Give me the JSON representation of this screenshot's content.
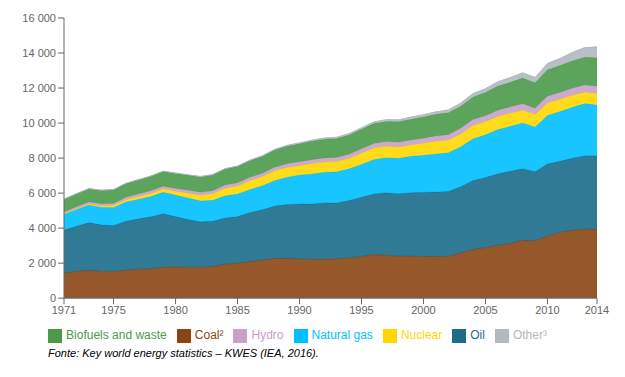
{
  "chart_data": {
    "type": "area",
    "stacked": true,
    "legend": "bottom",
    "grid": false,
    "annotations": [
      "Fonte: Key world energy statistics – KWES (IEA, 2016)."
    ],
    "x": [
      1971,
      1972,
      1973,
      1974,
      1975,
      1976,
      1977,
      1978,
      1979,
      1980,
      1981,
      1982,
      1983,
      1984,
      1985,
      1986,
      1987,
      1988,
      1989,
      1990,
      1991,
      1992,
      1993,
      1994,
      1995,
      1996,
      1997,
      1998,
      1999,
      2000,
      2001,
      2002,
      2003,
      2004,
      2005,
      2006,
      2007,
      2008,
      2009,
      2010,
      2011,
      2012,
      2013,
      2014
    ],
    "xlim": [
      1971,
      2014
    ],
    "xticks": [
      1971,
      1975,
      1980,
      1985,
      1990,
      1995,
      2000,
      2005,
      2010,
      2014
    ],
    "ylim": [
      0,
      16000
    ],
    "yticks": [
      0,
      {
        "value": 2000,
        "label": "2 000"
      },
      {
        "value": 4000,
        "label": "4 000"
      },
      {
        "value": 6000,
        "label": "6 000"
      },
      {
        "value": 8000,
        "label": "8 000"
      },
      {
        "value": 10000,
        "label": "10 000"
      },
      {
        "value": 12000,
        "label": "12 000"
      },
      {
        "value": 14000,
        "label": "14 000"
      },
      {
        "value": 16000,
        "label": "16 000"
      }
    ],
    "series": [
      {
        "name": "Coal²",
        "color": "#8B4513",
        "values": [
          1449,
          1524,
          1592,
          1543,
          1530,
          1601,
          1653,
          1683,
          1766,
          1792,
          1773,
          1773,
          1818,
          1942,
          2007,
          2093,
          2181,
          2266,
          2268,
          2244,
          2213,
          2218,
          2246,
          2296,
          2384,
          2490,
          2455,
          2394,
          2402,
          2386,
          2384,
          2393,
          2578,
          2777,
          2894,
          3026,
          3135,
          3302,
          3278,
          3555,
          3767,
          3876,
          3950,
          3916
        ]
      },
      {
        "name": "Oil",
        "color": "#1B6B8A",
        "values": [
          2450,
          2583,
          2723,
          2643,
          2623,
          2793,
          2876,
          2962,
          3060,
          2868,
          2726,
          2588,
          2571,
          2642,
          2651,
          2806,
          2862,
          2998,
          3088,
          3136,
          3167,
          3222,
          3196,
          3281,
          3380,
          3466,
          3567,
          3570,
          3621,
          3666,
          3677,
          3703,
          3785,
          3941,
          4001,
          4082,
          4111,
          4090,
          3947,
          4113,
          4050,
          4119,
          4185,
          4211
        ]
      },
      {
        "name": "Natural gas",
        "color": "#00BFFF",
        "values": [
          895,
          953,
          1010,
          1012,
          1032,
          1099,
          1117,
          1155,
          1220,
          1228,
          1223,
          1196,
          1198,
          1259,
          1286,
          1310,
          1374,
          1457,
          1545,
          1658,
          1717,
          1755,
          1778,
          1813,
          1873,
          1965,
          2004,
          2031,
          2077,
          2113,
          2178,
          2205,
          2282,
          2390,
          2441,
          2520,
          2566,
          2618,
          2556,
          2757,
          2838,
          2904,
          2978,
          2900
        ]
      },
      {
        "name": "Nuclear",
        "color": "#FFD700",
        "values": [
          29,
          45,
          53,
          74,
          103,
          132,
          161,
          181,
          198,
          224,
          271,
          317,
          376,
          433,
          460,
          505,
          524,
          551,
          564,
          526,
          587,
          584,
          579,
          582,
          634,
          649,
          644,
          634,
          644,
          676,
          718,
          722,
          733,
          753,
          737,
          751,
          751,
          722,
          703,
          720,
          704,
          694,
          651,
          664
        ]
      },
      {
        "name": "Hydro",
        "color": "#C8A0C8",
        "values": [
          104,
          111,
          112,
          120,
          125,
          132,
          138,
          148,
          151,
          158,
          165,
          170,
          175,
          181,
          188,
          191,
          196,
          205,
          210,
          221,
          228,
          232,
          240,
          251,
          256,
          262,
          274,
          280,
          289,
          296,
          306,
          312,
          323,
          336,
          345,
          356,
          362,
          370,
          359,
          381,
          385,
          396,
          404,
          409
        ]
      },
      {
        "name": "Biofuels and waste",
        "color": "#4A9A4A",
        "values": [
          717,
          735,
          752,
          763,
          776,
          790,
          810,
          828,
          839,
          856,
          869,
          883,
          896,
          915,
          930,
          942,
          960,
          979,
          1002,
          1027,
          1047,
          1067,
          1076,
          1094,
          1115,
          1139,
          1149,
          1171,
          1191,
          1210,
          1235,
          1254,
          1266,
          1297,
          1325,
          1379,
          1402,
          1467,
          1458,
          1518,
          1537,
          1560,
          1586,
          1624
        ]
      },
      {
        "name": "Other³",
        "color": "#B0B8C0",
        "values": [
          13,
          14,
          14,
          15,
          15,
          15,
          16,
          18,
          19,
          20,
          23,
          26,
          28,
          31,
          32,
          37,
          41,
          47,
          52,
          60,
          67,
          72,
          78,
          83,
          89,
          96,
          103,
          111,
          120,
          130,
          143,
          157,
          174,
          195,
          219,
          247,
          270,
          298,
          302,
          355,
          403,
          477,
          555,
          628
        ]
      }
    ]
  }
}
